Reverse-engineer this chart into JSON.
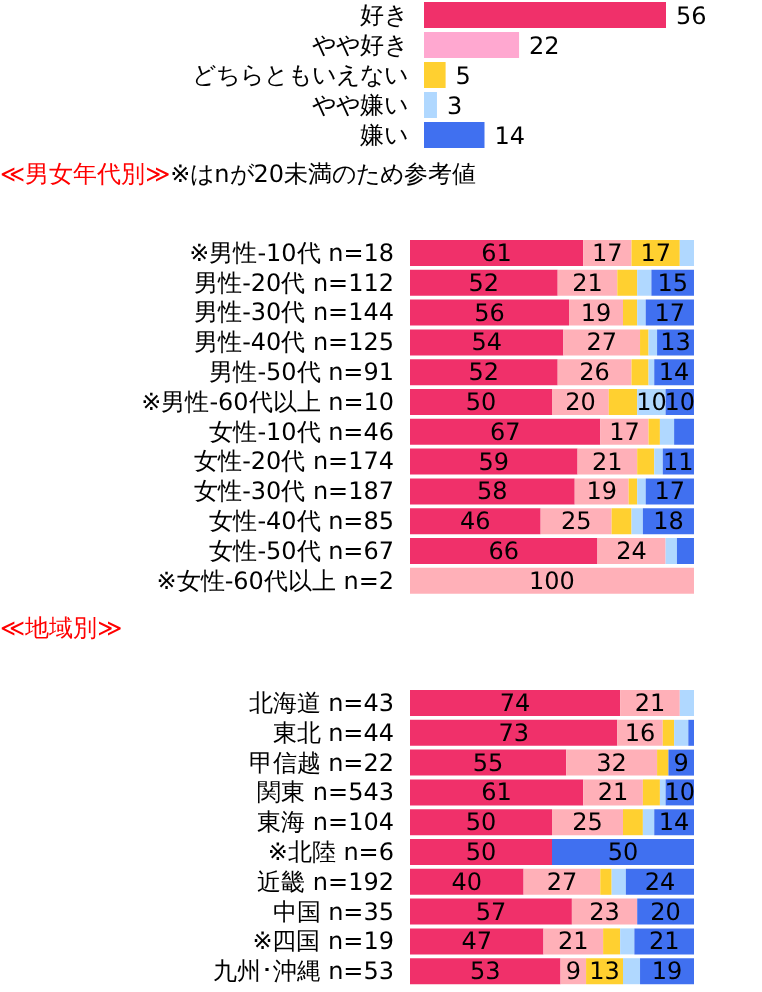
{
  "chart_data": [
    {
      "type": "bar",
      "orientation": "horizontal",
      "categories": [
        "好き",
        "やや好き",
        "どちらともいえない",
        "やや嫌い",
        "嫌い"
      ],
      "values": [
        56,
        22,
        5,
        3,
        14
      ],
      "colors": [
        "#f0306a",
        "#ffa8d0",
        "#ffd030",
        "#b0d8ff",
        "#4070f0"
      ],
      "data_labels": true
    },
    {
      "type": "bar",
      "orientation": "horizontal",
      "stacked": true,
      "title": "≪男女年代別≫",
      "subtitle": "※はnが20未満のため参考値",
      "categories": [
        "※男性-10代 n=18",
        "男性-20代 n=112",
        "男性-30代 n=144",
        "男性-40代 n=125",
        "男性-50代 n=91",
        "※男性-60代以上 n=10",
        "女性-10代 n=46",
        "女性-20代 n=174",
        "女性-30代 n=187",
        "女性-40代 n=85",
        "女性-50代 n=67",
        "※女性-60代以上 n=2"
      ],
      "series": [
        {
          "color": "#f0306a",
          "values": [
            61,
            52,
            56,
            54,
            52,
            50,
            67,
            59,
            58,
            46,
            66,
            0
          ],
          "value_labels": [
            "61",
            "52",
            "56",
            "54",
            "52",
            "50",
            "67",
            "59",
            "58",
            "46",
            "66",
            null
          ]
        },
        {
          "color": "#ffb0b8",
          "values": [
            17,
            21,
            19,
            27,
            26,
            20,
            17,
            21,
            19,
            25,
            24,
            100
          ],
          "value_labels": [
            "17",
            "21",
            "19",
            "27",
            "26",
            "20",
            "17",
            "21",
            "19",
            "25",
            "24",
            "100"
          ]
        },
        {
          "color": "#ffd030",
          "values": [
            17,
            7,
            5,
            3,
            6,
            10,
            4,
            6,
            3,
            7,
            0,
            0
          ],
          "value_labels": [
            "17",
            null,
            null,
            null,
            null,
            null,
            null,
            null,
            null,
            null,
            null,
            null
          ]
        },
        {
          "color": "#b0d8ff",
          "values": [
            5,
            5,
            3,
            3,
            2,
            10,
            5,
            3,
            3,
            4,
            4,
            0
          ],
          "value_labels": [
            null,
            null,
            null,
            null,
            null,
            "10",
            null,
            null,
            null,
            null,
            null,
            null
          ]
        },
        {
          "color": "#4070f0",
          "values": [
            0,
            15,
            17,
            13,
            14,
            10,
            7,
            11,
            17,
            18,
            6,
            0
          ],
          "value_labels": [
            null,
            "15",
            "17",
            "13",
            "14",
            "10",
            null,
            "11",
            "17",
            "18",
            null,
            null
          ]
        }
      ]
    },
    {
      "type": "bar",
      "orientation": "horizontal",
      "stacked": true,
      "title": "≪地域別≫",
      "categories": [
        "北海道 n=43",
        "東北 n=44",
        "甲信越 n=22",
        "関東 n=543",
        "東海 n=104",
        "※北陸 n=6",
        "近畿 n=192",
        "中国 n=35",
        "※四国 n=19",
        "九州･沖縄 n=53"
      ],
      "series": [
        {
          "color": "#f0306a",
          "values": [
            74,
            73,
            55,
            61,
            50,
            50,
            40,
            57,
            47,
            53
          ],
          "value_labels": [
            "74",
            "73",
            "55",
            "61",
            "50",
            "50",
            "40",
            "57",
            "47",
            "53"
          ]
        },
        {
          "color": "#ffb0b8",
          "values": [
            21,
            16,
            32,
            21,
            25,
            0,
            27,
            23,
            21,
            9
          ],
          "value_labels": [
            "21",
            "16",
            "32",
            "21",
            "25",
            null,
            "27",
            "23",
            "21",
            "9"
          ]
        },
        {
          "color": "#ffd030",
          "values": [
            0,
            4,
            4,
            6,
            7,
            0,
            4,
            0,
            6,
            13
          ],
          "value_labels": [
            null,
            null,
            null,
            null,
            null,
            null,
            null,
            null,
            null,
            "13"
          ]
        },
        {
          "color": "#b0d8ff",
          "values": [
            5,
            5,
            0,
            2,
            4,
            0,
            5,
            0,
            5,
            6
          ],
          "value_labels": [
            null,
            null,
            null,
            null,
            null,
            null,
            null,
            null,
            null,
            null
          ]
        },
        {
          "color": "#4070f0",
          "values": [
            0,
            2,
            9,
            10,
            14,
            50,
            24,
            20,
            21,
            19
          ],
          "value_labels": [
            null,
            null,
            "9",
            "10",
            "14",
            "50",
            "24",
            "20",
            "21",
            "19"
          ]
        }
      ]
    }
  ]
}
